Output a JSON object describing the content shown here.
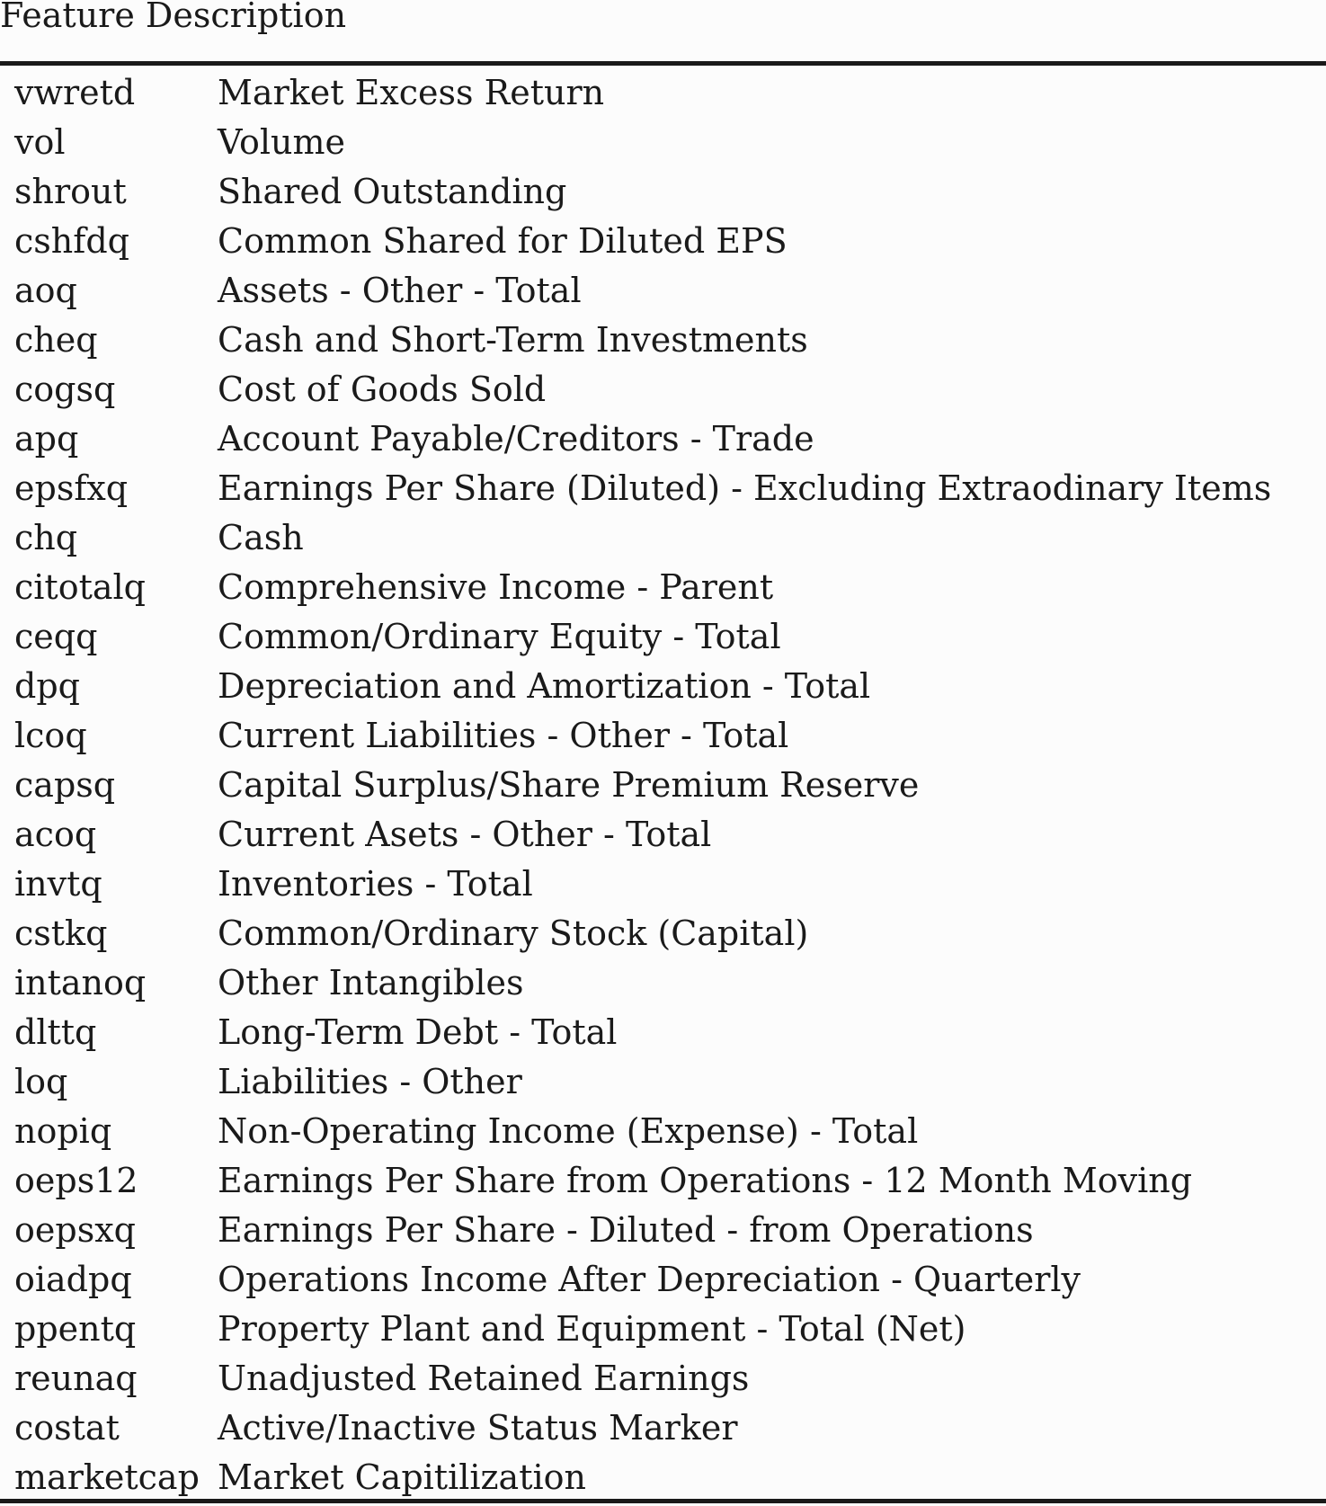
{
  "header": "Feature Description",
  "rows": [
    {
      "feature": "vwretd",
      "description": "Market Excess Return"
    },
    {
      "feature": "vol",
      "description": "Volume"
    },
    {
      "feature": "shrout",
      "description": "Shared Outstanding"
    },
    {
      "feature": "cshfdq",
      "description": "Common Shared for Diluted EPS"
    },
    {
      "feature": "aoq",
      "description": "Assets - Other - Total"
    },
    {
      "feature": "cheq",
      "description": "Cash and Short-Term Investments"
    },
    {
      "feature": "cogsq",
      "description": "Cost of Goods Sold"
    },
    {
      "feature": "apq",
      "description": "Account Payable/Creditors - Trade"
    },
    {
      "feature": "epsfxq",
      "description": "Earnings Per Share (Diluted) - Excluding Extraodinary Items"
    },
    {
      "feature": "chq",
      "description": "Cash"
    },
    {
      "feature": "citotalq",
      "description": "Comprehensive Income - Parent"
    },
    {
      "feature": "ceqq",
      "description": "Common/Ordinary Equity - Total"
    },
    {
      "feature": "dpq",
      "description": "Depreciation and Amortization - Total"
    },
    {
      "feature": "lcoq",
      "description": "Current Liabilities - Other - Total"
    },
    {
      "feature": "capsq",
      "description": "Capital Surplus/Share Premium Reserve"
    },
    {
      "feature": "acoq",
      "description": "Current Asets - Other - Total"
    },
    {
      "feature": "invtq",
      "description": "Inventories - Total"
    },
    {
      "feature": "cstkq",
      "description": "Common/Ordinary Stock (Capital)"
    },
    {
      "feature": "intanoq",
      "description": "Other Intangibles"
    },
    {
      "feature": "dlttq",
      "description": "Long-Term Debt - Total"
    },
    {
      "feature": "loq",
      "description": "Liabilities - Other"
    },
    {
      "feature": "nopiq",
      "description": "Non-Operating Income (Expense) - Total"
    },
    {
      "feature": "oeps12",
      "description": "Earnings Per Share from Operations - 12 Month Moving"
    },
    {
      "feature": "oepsxq",
      "description": "Earnings Per Share - Diluted - from Operations"
    },
    {
      "feature": "oiadpq",
      "description": "Operations Income After Depreciation - Quarterly"
    },
    {
      "feature": "ppentq",
      "description": "Property Plant and Equipment - Total (Net)"
    },
    {
      "feature": "reunaq",
      "description": "Unadjusted Retained Earnings"
    },
    {
      "feature": "costat",
      "description": "Active/Inactive Status Marker"
    },
    {
      "feature": "marketcap",
      "description": "Market Capitilization"
    }
  ]
}
